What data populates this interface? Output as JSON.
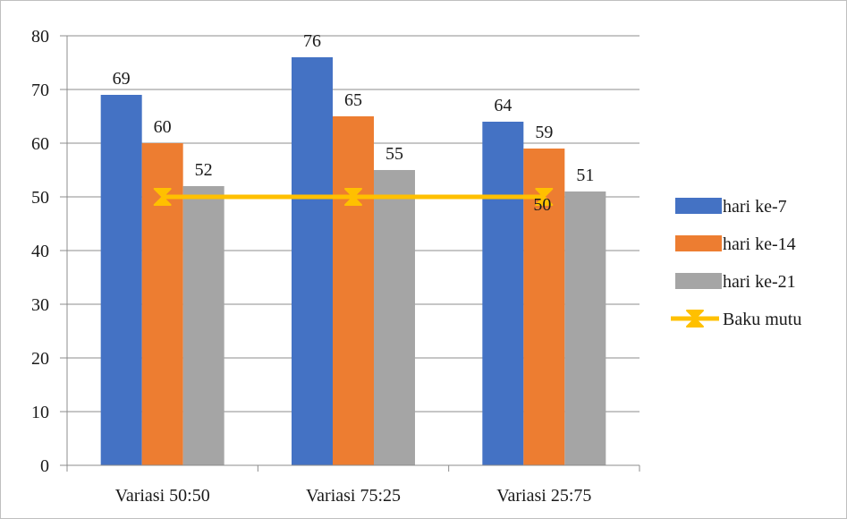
{
  "chart_data": {
    "type": "bar",
    "categories": [
      "Variasi 50:50",
      "Variasi 75:25",
      "Variasi 25:75"
    ],
    "series": [
      {
        "name": "hari ke-7",
        "values": [
          69,
          76,
          64
        ],
        "color": "#4472c4"
      },
      {
        "name": "hari ke-14",
        "values": [
          60,
          65,
          59
        ],
        "color": "#ed7d31"
      },
      {
        "name": "hari ke-21",
        "values": [
          52,
          55,
          51
        ],
        "color": "#a5a5a5"
      }
    ],
    "line_series": {
      "name": "Baku mutu",
      "values": [
        50,
        50,
        50
      ],
      "color": "#ffc000",
      "marker": "hourglass",
      "labeled_index": 2
    },
    "ylim": [
      0,
      80
    ],
    "yticks": [
      0,
      10,
      20,
      30,
      40,
      50,
      60,
      70,
      80
    ],
    "grid": true,
    "legend": "right"
  }
}
